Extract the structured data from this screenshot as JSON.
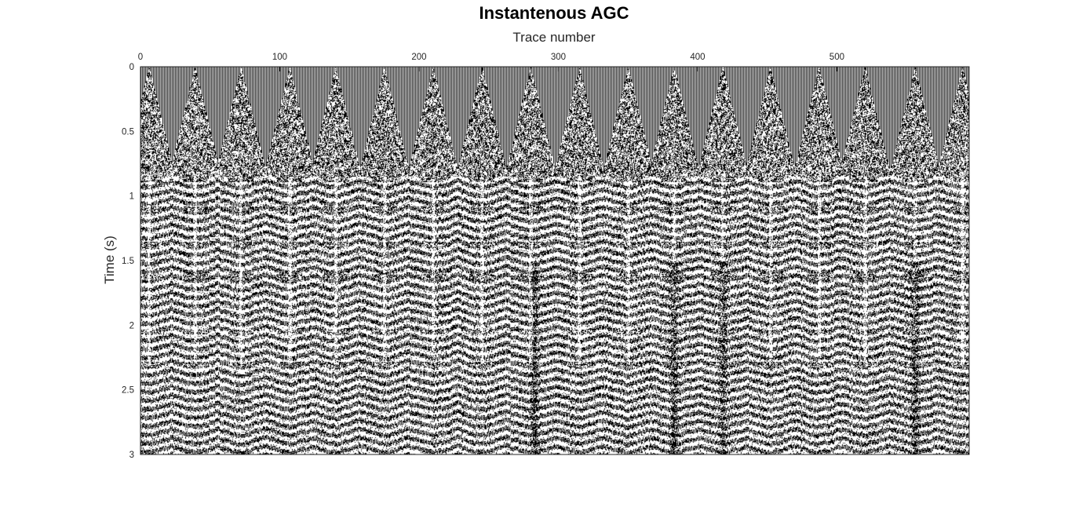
{
  "chart_data": {
    "type": "heatmap",
    "title": "Instantenous AGC",
    "xlabel": "Trace number",
    "ylabel": "Time (s)",
    "x_axis_position": "top",
    "xlim": [
      0,
      595
    ],
    "ylim": [
      0,
      3
    ],
    "y_reversed": true,
    "colormap": "gray (black/white wiggle traces)",
    "xticks": [
      0,
      100,
      200,
      300,
      400,
      500
    ],
    "yticks": [
      0,
      0.5,
      1,
      1.5,
      2,
      2.5,
      3
    ],
    "ytick_labels": [
      "0",
      "0.5",
      "1",
      "1.5",
      "2",
      "2.5",
      "3"
    ],
    "grid": false,
    "shot_apex_traces": [
      6,
      39,
      72,
      107,
      140,
      175,
      210,
      245,
      280,
      315,
      350,
      383,
      418,
      452,
      487,
      520,
      556,
      590
    ],
    "first_break_time_s": 0.85,
    "reflection_times_s": [
      0.87,
      1.1,
      1.37,
      1.62,
      2.05,
      2.3
    ],
    "high_amplitude_noise_traces": [
      383,
      418,
      556,
      283
    ],
    "colors": {
      "trace": "#000000",
      "background": "#ffffff",
      "axis": "#262626"
    }
  }
}
